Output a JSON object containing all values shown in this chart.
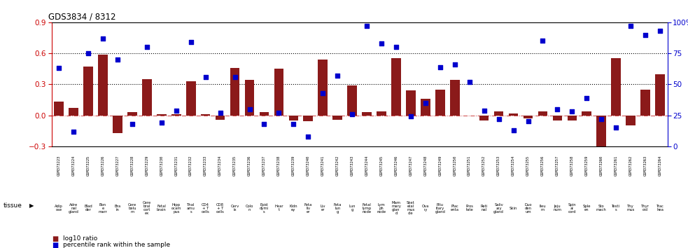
{
  "title": "GDS3834 / 8312",
  "gsm_labels": [
    "GSM373223",
    "GSM373224",
    "GSM373225",
    "GSM373226",
    "GSM373227",
    "GSM373228",
    "GSM373229",
    "GSM373230",
    "GSM373231",
    "GSM373232",
    "GSM373233",
    "GSM373234",
    "GSM373235",
    "GSM373236",
    "GSM373237",
    "GSM373238",
    "GSM373239",
    "GSM373240",
    "GSM373241",
    "GSM373242",
    "GSM373243",
    "GSM373244",
    "GSM373245",
    "GSM373246",
    "GSM373247",
    "GSM373248",
    "GSM373249",
    "GSM373250",
    "GSM373251",
    "GSM373252",
    "GSM373253",
    "GSM373254",
    "GSM373255",
    "GSM373256",
    "GSM373257",
    "GSM373258",
    "GSM373259",
    "GSM373260",
    "GSM373261",
    "GSM373262",
    "GSM373263",
    "GSM373264"
  ],
  "tissue_labels": [
    "Adip\nose",
    "Adre\nnal\ngland",
    "Blad\nder",
    "Bon\ne\nmarr",
    "Bra\nin",
    "Cere\nbelu\nm",
    "Cere\nbral\ncort\nex",
    "Fetal\nbrain",
    "Hipp\nocam\npus",
    "Thal\namu\ns",
    "CD4\n+ T\ncells",
    "CD8\n+ T\ncells",
    "Cerv\nix",
    "Colo\nn",
    "Epid\ndymi\ns",
    "Hear\nt",
    "Kidn\ney",
    "Feta\nliv\ner",
    "Liv\ner",
    "Feta\nlun\ng",
    "Lun\ng",
    "Fetal\nlymp\nnode",
    "Lym\nph\nnode",
    "Mam\nmary\nglan\nd",
    "Sket\netal\nmus\ncle",
    "Ova\nry",
    "Pitu\nitary\ngland",
    "Plac\nenta",
    "Pros\ntate",
    "Reti\nnal",
    "Saliv\nary\ngland",
    "Skin",
    "Duo\nden\num",
    "Ileu\nm",
    "Jeju\nnum",
    "Spin\nal\ncord",
    "Sple\nen",
    "Sto\nmach",
    "Testi\ns",
    "Thy\nmus",
    "Thyr\noid",
    "Trac\nhea"
  ],
  "log10_ratio": [
    0.13,
    0.07,
    0.47,
    0.59,
    -0.17,
    0.03,
    0.35,
    0.01,
    0.01,
    0.33,
    0.01,
    -0.04,
    0.46,
    0.34,
    0.03,
    0.45,
    -0.05,
    -0.06,
    0.54,
    -0.04,
    0.29,
    0.03,
    0.04,
    0.55,
    0.24,
    0.16,
    0.25,
    0.34,
    0.0,
    -0.05,
    0.04,
    0.02,
    -0.03,
    0.04,
    -0.05,
    -0.05,
    0.04,
    -0.34,
    0.55,
    -0.1,
    0.25,
    0.4
  ],
  "percentile": [
    63,
    12,
    75,
    87,
    70,
    18,
    80,
    19,
    29,
    84,
    56,
    27,
    56,
    30,
    18,
    27,
    18,
    8,
    43,
    57,
    26,
    97,
    83,
    80,
    24,
    35,
    64,
    66,
    52,
    29,
    22,
    13,
    20,
    85,
    30,
    28,
    39,
    22,
    15,
    97,
    90,
    93
  ],
  "bar_color": "#8B1A1A",
  "dot_color": "#0000CD",
  "bg_color_gray": "#C8C8C8",
  "bg_color_green": "#90EE90",
  "ylim_left": [
    -0.3,
    0.9
  ],
  "ylim_right": [
    0,
    100
  ],
  "yticks_left": [
    -0.3,
    0.0,
    0.3,
    0.6,
    0.9
  ],
  "yticks_right": [
    0,
    25,
    50,
    75,
    100
  ],
  "dotted_vals": [
    0.3,
    0.6
  ],
  "legend_log10": "log10 ratio",
  "legend_pct": "percentile rank within the sample",
  "tissue_label": "tissue"
}
